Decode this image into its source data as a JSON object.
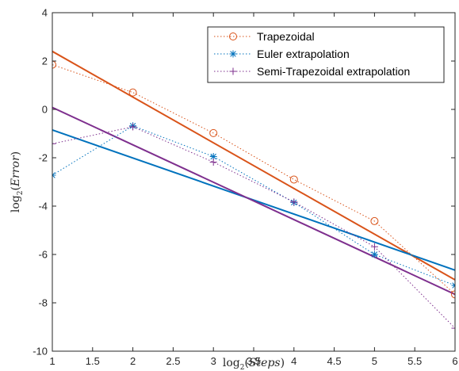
{
  "chart_data": {
    "type": "line",
    "xlabel": "log2(Steps)",
    "ylabel": "log2(Error)",
    "xlim": [
      1,
      6
    ],
    "ylim": [
      -10,
      4
    ],
    "xticks": [
      1,
      1.5,
      2,
      2.5,
      3,
      3.5,
      4,
      4.5,
      5,
      5.5,
      6
    ],
    "xtick_labels": [
      "1",
      "1.5",
      "2",
      "2.5",
      "3",
      "3.5",
      "4",
      "4.5",
      "5",
      "5.5",
      "6"
    ],
    "yticks": [
      -10,
      -8,
      -6,
      -4,
      -2,
      0,
      2,
      4
    ],
    "ytick_labels": [
      "-10",
      "-8",
      "-6",
      "-4",
      "-2",
      "0",
      "2",
      "4"
    ],
    "grid": false,
    "legend_position": "top-right",
    "series": [
      {
        "name": "Trapezoidal",
        "color": "#D95319",
        "marker": "circle",
        "line_style": "dotted",
        "x": [
          1,
          2,
          3,
          4,
          5,
          6
        ],
        "y": [
          1.85,
          0.7,
          -0.98,
          -2.9,
          -4.62,
          -7.65
        ],
        "fit": {
          "x": [
            1,
            6
          ],
          "y": [
            2.4,
            -7.05
          ]
        }
      },
      {
        "name": "Euler extrapolation",
        "color": "#0072BD",
        "marker": "asterisk",
        "line_style": "dotted",
        "x": [
          1,
          2,
          3,
          4,
          5,
          6
        ],
        "y": [
          -2.72,
          -0.68,
          -1.95,
          -3.85,
          -6.0,
          -7.28
        ],
        "fit": {
          "x": [
            1,
            6
          ],
          "y": [
            -0.85,
            -6.65
          ]
        }
      },
      {
        "name": "Semi-Trapezoidal extrapolation",
        "color": "#7E2F8E",
        "marker": "plus",
        "line_style": "dotted",
        "x": [
          1,
          2,
          3,
          4,
          5,
          6
        ],
        "y": [
          -1.42,
          -0.72,
          -2.18,
          -3.83,
          -5.68,
          -9.05
        ],
        "fit": {
          "x": [
            1,
            6
          ],
          "y": [
            0.08,
            -7.65
          ]
        }
      }
    ]
  }
}
